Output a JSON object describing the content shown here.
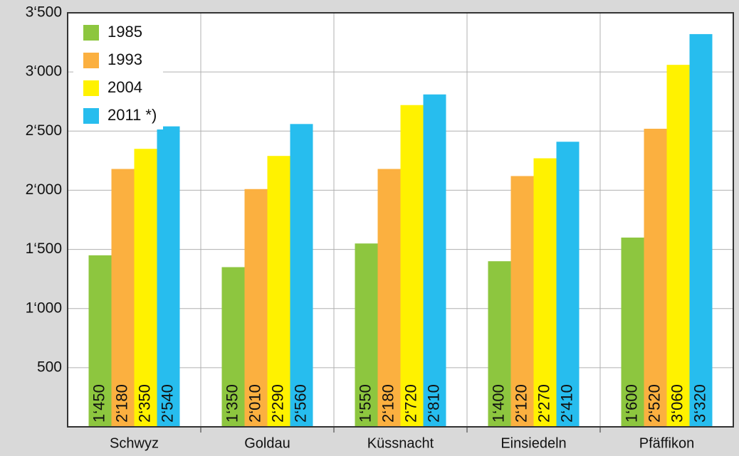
{
  "chart_data": {
    "type": "bar",
    "categories": [
      "Schwyz",
      "Goldau",
      "Küssnacht",
      "Einsiedeln",
      "Pfäffikon"
    ],
    "series": [
      {
        "name": "1985",
        "color": "#8dc63f",
        "values": [
          1450,
          1350,
          1550,
          1400,
          1600
        ],
        "value_labels": [
          "1‘450",
          "1‘350",
          "1‘550",
          "1‘400",
          "1‘600"
        ]
      },
      {
        "name": "1993",
        "color": "#fbb040",
        "values": [
          2180,
          2010,
          2180,
          2120,
          2520
        ],
        "value_labels": [
          "2‘180",
          "2‘010",
          "2‘180",
          "2‘120",
          "2‘520"
        ]
      },
      {
        "name": "2004",
        "color": "#fff200",
        "values": [
          2350,
          2290,
          2720,
          2270,
          3060
        ],
        "value_labels": [
          "2‘350",
          "2‘290",
          "2‘720",
          "2‘270",
          "3‘060"
        ]
      },
      {
        "name": "2011 *)",
        "color": "#27bdee",
        "values": [
          2540,
          2560,
          2810,
          2410,
          3320
        ],
        "value_labels": [
          "2‘540",
          "2‘560",
          "2‘810",
          "2‘410",
          "3‘320"
        ]
      }
    ],
    "ylim": [
      0,
      3500
    ],
    "yticks": [
      500,
      {
        "value": 1000,
        "label": "1‘000"
      },
      {
        "value": 1500,
        "label": "1‘500"
      },
      {
        "value": 2000,
        "label": "2‘000"
      },
      {
        "value": 2500,
        "label": "2‘500"
      },
      {
        "value": 3000,
        "label": "3‘000"
      },
      {
        "value": 3500,
        "label": "3‘500"
      }
    ],
    "grid": true,
    "legend": "upper left"
  }
}
